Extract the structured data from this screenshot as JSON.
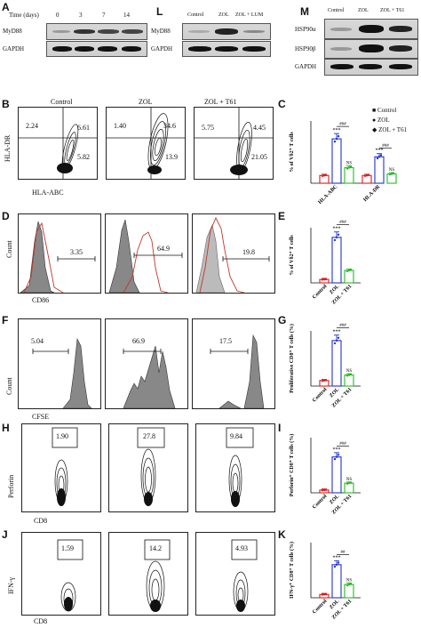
{
  "A": {
    "panel": "A",
    "time_label": "Time (days)",
    "times": [
      "0",
      "3",
      "7",
      "14"
    ],
    "rows": [
      "MyD88",
      "GAPDH"
    ]
  },
  "L": {
    "panel": "L",
    "cols": [
      "Control",
      "ZOL",
      "ZOL + LUM"
    ],
    "rows": [
      "MyD88",
      "GAPDH"
    ]
  },
  "M": {
    "panel": "M",
    "cols": [
      "Control",
      "ZOL",
      "ZOL + T61"
    ],
    "rows": [
      "HSP90α",
      "HSP90β",
      "GAPDH"
    ]
  },
  "B": {
    "panel": "B",
    "cols": [
      "Control",
      "ZOL",
      "ZOL + T61"
    ],
    "ylabel": "HLA-DR",
    "xlabel": "HLA-ABC",
    "quads": [
      [
        "2.24",
        "6.61",
        "5.82"
      ],
      [
        "1.40",
        "34.6",
        "13.9"
      ],
      [
        "5.75",
        "4.45",
        "21.05"
      ]
    ]
  },
  "C": {
    "panel": "C",
    "ylabel": "% of Vδ2⁺ T cells",
    "legend": [
      "Control",
      "ZOL",
      "ZOL + T61"
    ],
    "cats": [
      "HLA-ABC",
      "HLA-DR"
    ],
    "sig1": "***",
    "sig2": "###",
    "ns": "NS"
  },
  "D": {
    "panel": "D",
    "ylabel": "Count",
    "xlabel": "CD86",
    "gates": [
      "3.35",
      "64.9",
      "19.8"
    ]
  },
  "E": {
    "panel": "E",
    "ylabel": "% of Vδ2⁺ T cells",
    "cats": [
      "Control",
      "ZOL",
      "ZOL + T61"
    ],
    "sig1": "***",
    "sig2": "###"
  },
  "F": {
    "panel": "F",
    "ylabel": "Count",
    "xlabel": "CFSE",
    "gates": [
      "5.04",
      "66.9",
      "17.5"
    ]
  },
  "G": {
    "panel": "G",
    "ylabel": "Proliferative CD8⁺ T cells (%)",
    "cats": [
      "Control",
      "ZOL",
      "ZOL + T61"
    ],
    "sig1": "***",
    "sig2": "###",
    "ns": "NS"
  },
  "H": {
    "panel": "H",
    "ylabel": "Perforin",
    "xlabel": "CD8",
    "gates": [
      "1.90",
      "27.8",
      "9.84"
    ]
  },
  "I": {
    "panel": "I",
    "ylabel": "Perforin⁺ CD8⁺ T cells (%)",
    "cats": [
      "Control",
      "ZOL",
      "ZOL + T61"
    ],
    "sig1": "***",
    "sig2": "###",
    "ns": "NS"
  },
  "J": {
    "panel": "J",
    "ylabel": "IFN-γ",
    "xlabel": "CD8",
    "gates": [
      "1.59",
      "14.2",
      "4.93"
    ]
  },
  "K": {
    "panel": "K",
    "ylabel": "IFN-γ⁺ CD8⁺ T cells (%)",
    "cats": [
      "Control",
      "ZOL",
      "ZOL + T61"
    ],
    "sig1": "***",
    "sig2": "##",
    "ns": "NS"
  },
  "colors": {
    "control": "#d81b1b",
    "zol": "#2233cc",
    "t61": "#22bb22"
  },
  "chart_data": [
    {
      "panel": "C",
      "type": "bar",
      "categories": [
        "HLA-ABC",
        "HLA-DR"
      ],
      "series": [
        {
          "name": "Control",
          "values": [
            10,
            10
          ]
        },
        {
          "name": "ZOL",
          "values": [
            57,
            34
          ]
        },
        {
          "name": "ZOL + T61",
          "values": [
            20,
            12
          ]
        }
      ],
      "ylabel": "% of Vδ2⁺ T cells",
      "ylim": [
        0,
        80
      ]
    },
    {
      "panel": "E",
      "type": "bar",
      "categories": [
        "Control",
        "ZOL",
        "ZOL + T61"
      ],
      "values": [
        5,
        66,
        18
      ],
      "ylabel": "% of Vδ2⁺ T cells",
      "ylim": [
        0,
        80
      ]
    },
    {
      "panel": "G",
      "type": "bar",
      "categories": [
        "Control",
        "ZOL",
        "ZOL + T61"
      ],
      "values": [
        8,
        66,
        16
      ],
      "ylabel": "Proliferative CD8⁺ T cells (%)",
      "ylim": [
        0,
        80
      ]
    },
    {
      "panel": "I",
      "type": "bar",
      "categories": [
        "Control",
        "ZOL",
        "ZOL + T61"
      ],
      "values": [
        2,
        26,
        7
      ],
      "ylabel": "Perforin⁺ CD8⁺ T cells (%)",
      "ylim": [
        0,
        40
      ]
    },
    {
      "panel": "K",
      "type": "bar",
      "categories": [
        "Control",
        "ZOL",
        "ZOL + T61"
      ],
      "values": [
        1.5,
        15,
        6
      ],
      "ylabel": "IFN-γ⁺ CD8⁺ T cells (%)",
      "ylim": [
        0,
        25
      ]
    }
  ]
}
